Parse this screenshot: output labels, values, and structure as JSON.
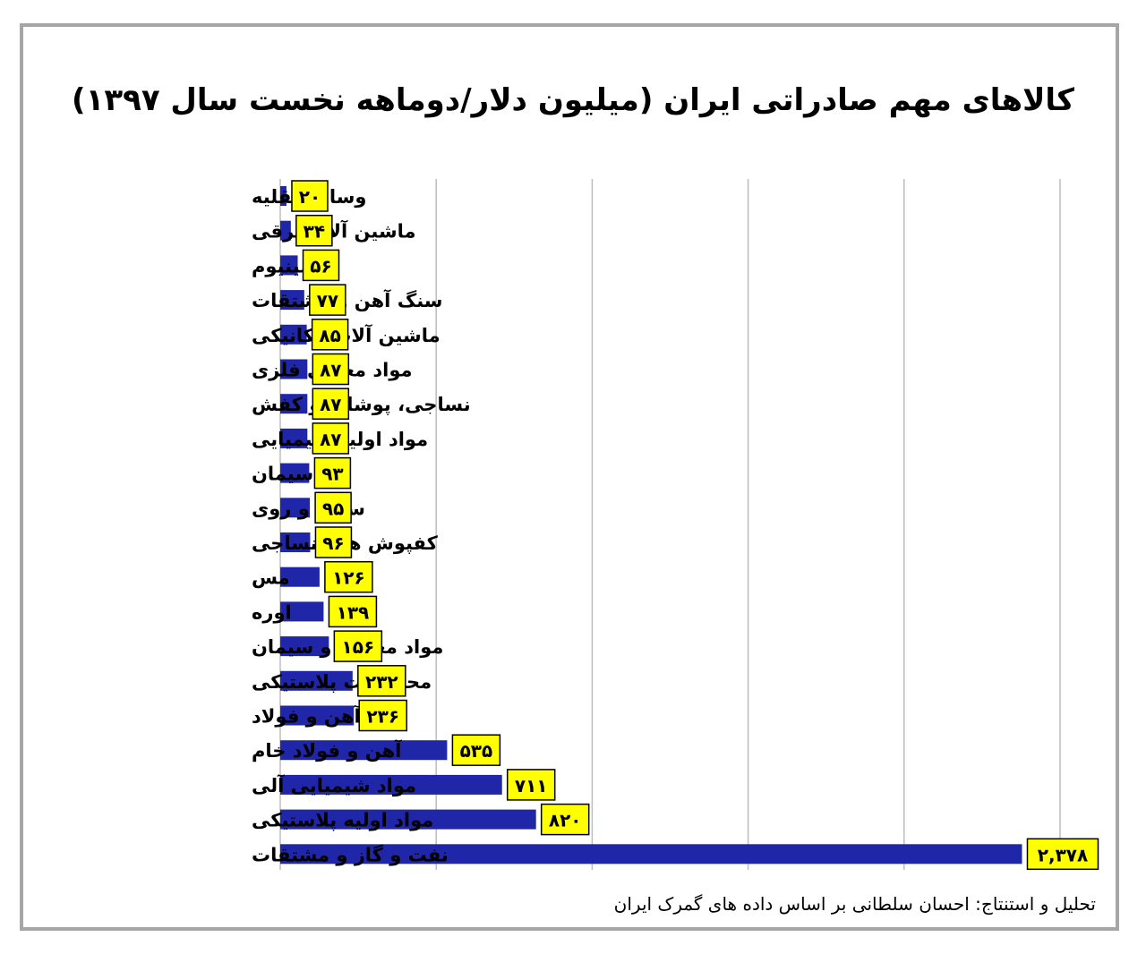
{
  "chart_data": {
    "type": "bar",
    "orientation": "horizontal",
    "title": "کالاهای مهم صادراتی ایران (میلیون دلار/دوماهه نخست سال ۱۳۹۷)",
    "footnote": "تحلیل و استنتاج: احسان سلطانی بر اساس داده های گمرک ایران",
    "categories": [
      "وسایل نقلیه",
      "ماشین آلات برقی",
      "آلومینیوم",
      "سنگ آهن و مشتقات",
      "ماشین آلات مکانیکی",
      "مواد معدنی فلزی",
      "نساجی، پوشاک و کفش",
      "مواد اولیه شیمیایی",
      "سیمان",
      "سرب و روی",
      "کفپوش های نساجی",
      "مس",
      "اوره",
      "مواد معدنی و سیمان",
      "محصولات پلاستیکی",
      "آهن و فولاد",
      "آهن و فولاد خام",
      "مواد شیمیایی آلی",
      "مواد اولیه پلاستیکی",
      "نفت و گاز و مشتقات"
    ],
    "values": [
      20,
      34,
      56,
      77,
      85,
      87,
      87,
      87,
      93,
      95,
      96,
      126,
      139,
      156,
      232,
      236,
      535,
      711,
      820,
      2378
    ],
    "value_labels": [
      "۲۰",
      "۳۴",
      "۵۶",
      "۷۷",
      "۸۵",
      "۸۷",
      "۸۷",
      "۸۷",
      "۹۳",
      "۹۵",
      "۹۶",
      "۱۲۶",
      "۱۳۹",
      "۱۵۶",
      "۲۳۲",
      "۲۳۶",
      "۵۳۵",
      "۷۱۱",
      "۸۲۰",
      "۲,۳۷۸"
    ],
    "xlim": [
      0,
      2500
    ],
    "grid": true,
    "bar_color": "#1f26a8",
    "label_box_color": "#ffff00"
  }
}
